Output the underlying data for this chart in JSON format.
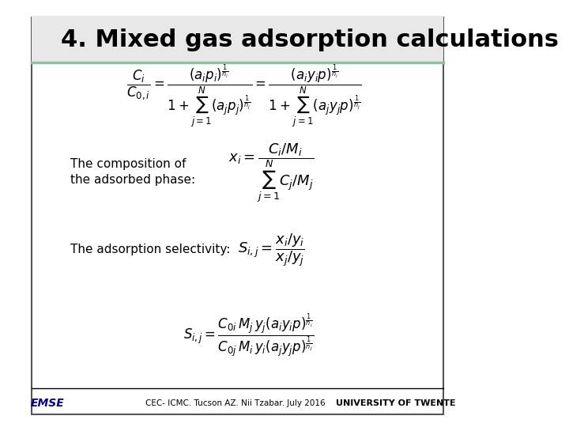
{
  "title": "4. Mixed gas adsorption calculations",
  "title_fontsize": 22,
  "title_bg_color": "#e8e8e8",
  "title_bar_color": "#90c0a0",
  "slide_bg_color": "#ffffff",
  "border_color": "#555555",
  "text_color": "#000000",
  "label1_line1": "The composition of",
  "label1_line2": "the adsorbed phase:",
  "label2": "The adsorption selectivity:",
  "footer_text": "CEC- ICMC. Tucson AZ. Nii Tzabar. July 2016",
  "label1_fontsize": 11,
  "label2_fontsize": 11,
  "footer_fontsize": 7.5,
  "eq_fontsize_large": 12,
  "eq_fontsize_med": 13,
  "eq_fontsize_small": 12
}
